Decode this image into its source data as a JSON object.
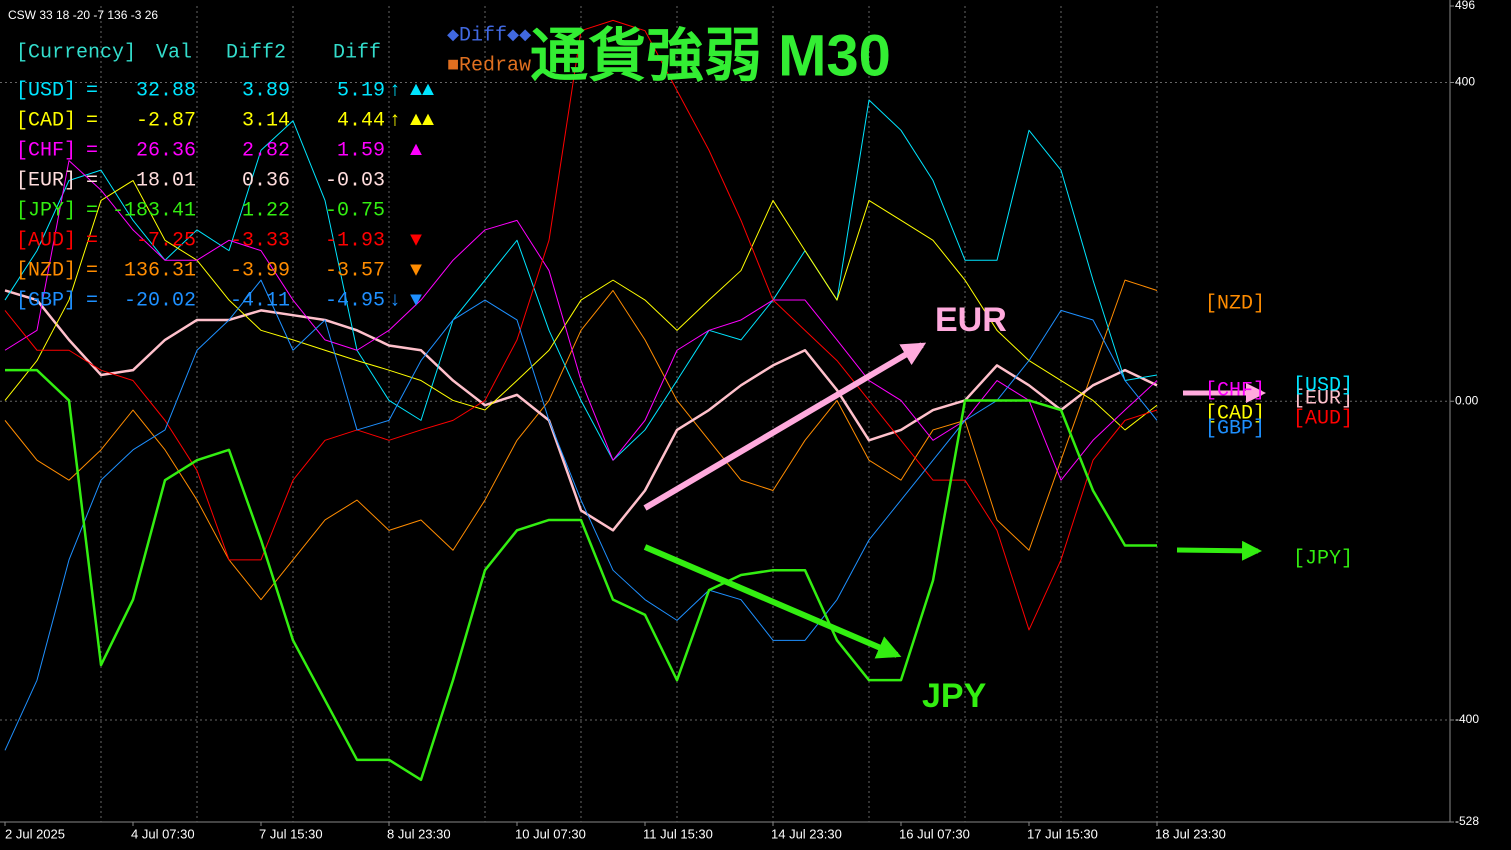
{
  "chart_data": {
    "type": "line",
    "title": "通貨強弱 M30",
    "header": "CSW 33 18 -20 -7 136 -3 26",
    "buttons": [
      "◆Diff◆◆",
      "■Redraw"
    ],
    "annotations": [
      {
        "text": "EUR",
        "color": "#ffaadd"
      },
      {
        "text": "JPY",
        "color": "#33ee11"
      }
    ],
    "categories": [
      "2 Jul 2025",
      null,
      null,
      null,
      "4 Jul 07:30",
      null,
      null,
      null,
      "7 Jul 15:30",
      null,
      null,
      null,
      "8 Jul 23:30",
      null,
      null,
      null,
      "10 Jul 07:30",
      null,
      null,
      null,
      "11 Jul 15:30",
      null,
      null,
      null,
      "14 Jul 23:30",
      null,
      null,
      null,
      "16 Jul 07:30",
      null,
      null,
      null,
      "17 Jul 15:30",
      null,
      null,
      null,
      "18 Jul 23:30"
    ],
    "ylim": [
      -528,
      496
    ],
    "yticks": [
      -528,
      -400,
      {
        "value": 0,
        "label": "0.00"
      },
      400,
      496
    ],
    "grid": true,
    "series": [
      {
        "name": "[USD]",
        "color": "#00e5ff",
        "width": 1,
        "values": [
          127,
          189,
          277,
          290,
          227,
          177,
          215,
          189,
          315,
          352,
          252,
          64,
          1,
          -24,
          102,
          152,
          202,
          89,
          1,
          -74,
          -36,
          26,
          89,
          77,
          127,
          189,
          127,
          378,
          340,
          277,
          177,
          177,
          340,
          290,
          152,
          26,
          33
        ]
      },
      {
        "name": "[CAD]",
        "color": "#ffff00",
        "width": 1,
        "values": [
          1,
          51,
          127,
          252,
          277,
          202,
          177,
          127,
          89,
          77,
          64,
          51,
          39,
          26,
          1,
          -11,
          26,
          64,
          127,
          152,
          127,
          89,
          127,
          164,
          252,
          189,
          127,
          252,
          227,
          202,
          152,
          89,
          51,
          26,
          1,
          -36,
          -5
        ]
      },
      {
        "name": "[CHF]",
        "color": "#ff00ff",
        "width": 1,
        "values": [
          64,
          89,
          302,
          265,
          215,
          177,
          177,
          202,
          189,
          127,
          77,
          64,
          89,
          127,
          177,
          215,
          227,
          164,
          26,
          -74,
          -24,
          64,
          89,
          102,
          127,
          127,
          77,
          26,
          1,
          -49,
          -24,
          26,
          1,
          -99,
          -49,
          -11,
          26
        ]
      },
      {
        "name": "[EUR]",
        "color": "#ffc0cb",
        "width": 2.5,
        "values": [
          139,
          127,
          77,
          33,
          39,
          77,
          102,
          102,
          114,
          108,
          102,
          89,
          70,
          64,
          26,
          -5,
          8,
          -24,
          -137,
          -162,
          -112,
          -36,
          -11,
          20,
          45,
          64,
          14,
          -49,
          -36,
          -11,
          1,
          45,
          20,
          -11,
          20,
          39,
          20
        ]
      },
      {
        "name": "[JPY]",
        "color": "#33ee11",
        "width": 2.5,
        "values": [
          39,
          39,
          1,
          -331,
          -249,
          -99,
          -74,
          -61,
          -174,
          -300,
          -375,
          -450,
          -450,
          -475,
          -350,
          -212,
          -162,
          -149,
          -149,
          -249,
          -268,
          -350,
          -237,
          -218,
          -212,
          -212,
          -300,
          -350,
          -350,
          -225,
          1,
          1,
          1,
          -11,
          -112,
          -181,
          -181
        ]
      },
      {
        "name": "[AUD]",
        "color": "#ff0000",
        "width": 1,
        "values": [
          114,
          64,
          64,
          39,
          26,
          -24,
          -87,
          -199,
          -199,
          -99,
          -49,
          -36,
          -49,
          -36,
          -24,
          1,
          77,
          202,
          465,
          478,
          465,
          390,
          315,
          227,
          127,
          89,
          51,
          1,
          -49,
          -99,
          -99,
          -162,
          -287,
          -199,
          -74,
          -24,
          -11
        ]
      },
      {
        "name": "[NZD]",
        "color": "#ff8c00",
        "width": 1,
        "values": [
          -24,
          -74,
          -99,
          -61,
          -11,
          -61,
          -124,
          -199,
          -249,
          -199,
          -149,
          -124,
          -162,
          -149,
          -187,
          -124,
          -49,
          1,
          89,
          139,
          77,
          1,
          -49,
          -99,
          -112,
          -49,
          1,
          -74,
          -99,
          -36,
          -24,
          -149,
          -187,
          -74,
          39,
          152,
          139
        ]
      },
      {
        "name": "[GBP]",
        "color": "#1e90ff",
        "width": 1,
        "values": [
          -438,
          -350,
          -199,
          -99,
          -61,
          -36,
          64,
          102,
          152,
          64,
          102,
          -36,
          -24,
          51,
          102,
          127,
          102,
          -24,
          -124,
          -212,
          -249,
          -275,
          -237,
          -249,
          -300,
          -300,
          -249,
          -174,
          -124,
          -74,
          -24,
          1,
          51,
          114,
          102,
          26,
          -24
        ]
      }
    ]
  },
  "panel": {
    "columns": [
      "[Currency]",
      "Val",
      "Diff2",
      "Diff"
    ],
    "rows": [
      {
        "name": "[USD]",
        "eq": "=",
        "val": 32.88,
        "diff2": 3.89,
        "diff": 5.19,
        "arrow": "↑",
        "signal": "▲▲",
        "color": "#00e5ff"
      },
      {
        "name": "[CAD]",
        "eq": "=",
        "val": -2.87,
        "diff2": 3.14,
        "diff": 4.44,
        "arrow": "↑",
        "signal": "▲▲",
        "color": "#ffff00"
      },
      {
        "name": "[CHF]",
        "eq": "=",
        "val": 26.36,
        "diff2": 2.82,
        "diff": 1.59,
        "signal": "▲",
        "color": "#ff00ff"
      },
      {
        "name": "[EUR]",
        "eq": "=",
        "val": 18.01,
        "diff2": 0.36,
        "diff": -0.03,
        "color": "#ffdddd"
      },
      {
        "name": "[JPY]",
        "eq": "=",
        "val": -183.41,
        "diff2": 1.22,
        "diff": -0.75,
        "color": "#33ee11"
      },
      {
        "name": "[AUD]",
        "eq": "=",
        "val": -7.25,
        "diff2": -3.33,
        "diff": -1.93,
        "signal": "▼",
        "color": "#ff0000"
      },
      {
        "name": "[NZD]",
        "eq": "=",
        "val": 136.31,
        "diff2": -3.99,
        "diff": -3.57,
        "signal": "▼",
        "color": "#ff8c00"
      },
      {
        "name": "[GBP]",
        "eq": "=",
        "val": -20.02,
        "diff2": -4.11,
        "diff": -4.95,
        "arrow": "↓",
        "signal": "▼",
        "color": "#1e90ff"
      }
    ]
  }
}
